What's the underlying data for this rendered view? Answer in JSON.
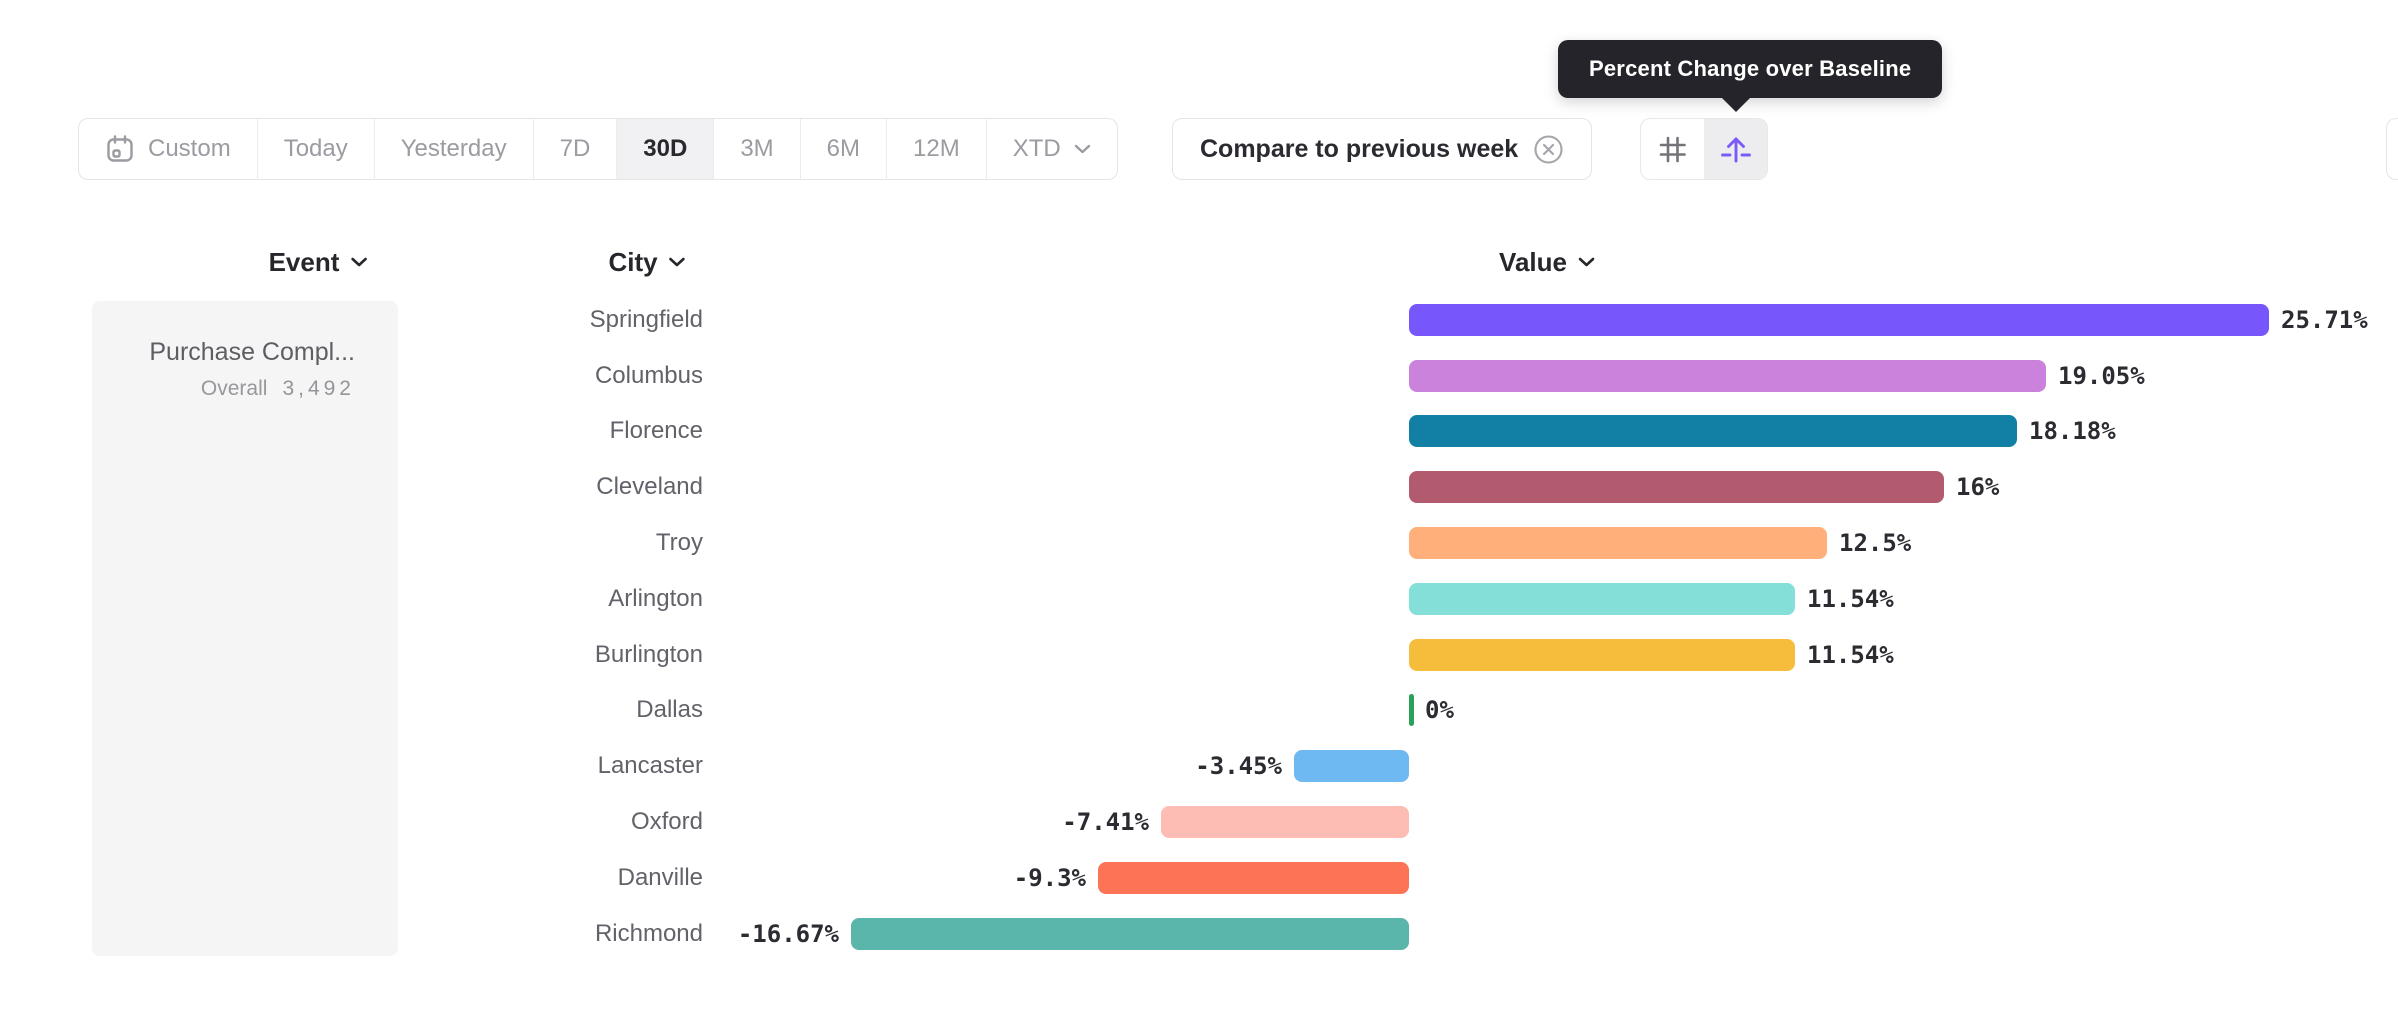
{
  "tooltip": {
    "text": "Percent Change over Baseline"
  },
  "toolbar": {
    "date_ranges": [
      {
        "label": "Custom",
        "icon": "calendar-icon",
        "selected": false
      },
      {
        "label": "Today",
        "selected": false
      },
      {
        "label": "Yesterday",
        "selected": false
      },
      {
        "label": "7D",
        "selected": false
      },
      {
        "label": "30D",
        "selected": true
      },
      {
        "label": "3M",
        "selected": false
      },
      {
        "label": "6M",
        "selected": false
      },
      {
        "label": "12M",
        "selected": false
      },
      {
        "label": "XTD",
        "selected": false,
        "has_chevron": true
      }
    ],
    "compare": {
      "label": "Compare to previous week",
      "icon": "circle-x-icon"
    },
    "view_toggle": {
      "options": [
        "number-sign-icon",
        "baseline-arrow-icon"
      ],
      "selected": "baseline-arrow-icon"
    }
  },
  "columns": {
    "event": "Event",
    "city": "City",
    "value": "Value"
  },
  "event_panel": {
    "name": "Purchase Compl...",
    "overall_label": "Overall",
    "overall_value": "3,492"
  },
  "chart_data": {
    "type": "bar",
    "orientation": "horizontal",
    "title": "Percent Change over Baseline",
    "unit": "%",
    "baseline": 0,
    "xlim": [
      -16.67,
      25.71
    ],
    "grid": false,
    "legend": false,
    "categories": [
      "Springfield",
      "Columbus",
      "Florence",
      "Cleveland",
      "Troy",
      "Arlington",
      "Burlington",
      "Dallas",
      "Lancaster",
      "Oxford",
      "Danville",
      "Richmond"
    ],
    "values": [
      25.71,
      19.05,
      18.18,
      16,
      12.5,
      11.54,
      11.54,
      0,
      -3.45,
      -7.41,
      -9.3,
      -16.67
    ],
    "labels": [
      "25.71%",
      "19.05%",
      "18.18%",
      "16%",
      "12.5%",
      "11.54%",
      "11.54%",
      "0%",
      "-3.45%",
      "-7.41%",
      "-9.3%",
      "-16.67%"
    ],
    "colors": [
      "#7757fb",
      "#ca82dd",
      "#1180a4",
      "#b25a6e",
      "#feaf7a",
      "#84dfd8",
      "#f6bc3b",
      "#2aa05a",
      "#6fb9f2",
      "#fdbdb4",
      "#fc7356",
      "#5ab5aa"
    ]
  }
}
